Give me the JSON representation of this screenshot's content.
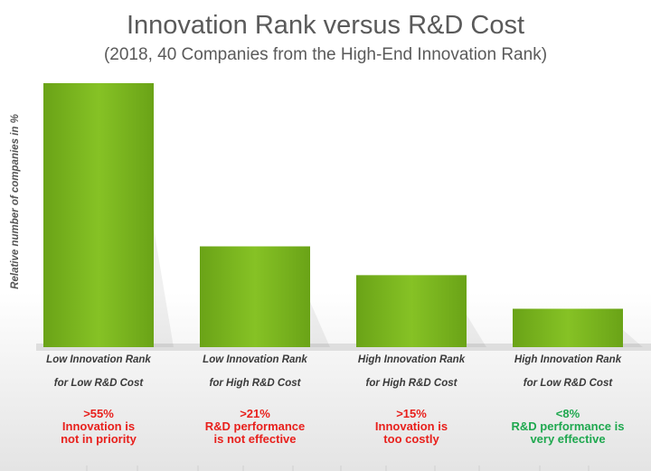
{
  "chart_data": {
    "type": "bar",
    "title": "Innovation Rank versus R&D Cost",
    "subtitle": "(2018, 40 Companies from the High-End Innovation  Rank)",
    "ylabel": "Relative number of companies in %",
    "xlabel": "",
    "categories": [
      [
        "Low Innovation Rank",
        "for Low R&D Cost"
      ],
      [
        "Low Innovation Rank",
        "for High R&D Cost"
      ],
      [
        "High Innovation Rank",
        "for High R&D Cost"
      ],
      [
        "High Innovation Rank",
        "for Low R&D Cost"
      ]
    ],
    "values": [
      55,
      21,
      15,
      8
    ],
    "ylim": [
      0,
      60
    ],
    "grid": false,
    "legend": "none",
    "bar_color": "#7ab51d",
    "annotations": [
      {
        "value_text": ">55%",
        "line1": "Innovation is",
        "line2": "not in priority",
        "color": "#e8201c"
      },
      {
        "value_text": ">21%",
        "line1": "R&D performance",
        "line2": "is not effective",
        "color": "#e8201c"
      },
      {
        "value_text": ">15%",
        "line1": "Innovation is",
        "line2": "too costly",
        "color": "#e8201c"
      },
      {
        "value_text": "<8%",
        "line1": "R&D performance is",
        "line2": "very effective",
        "color": "#1fa84f"
      }
    ]
  }
}
